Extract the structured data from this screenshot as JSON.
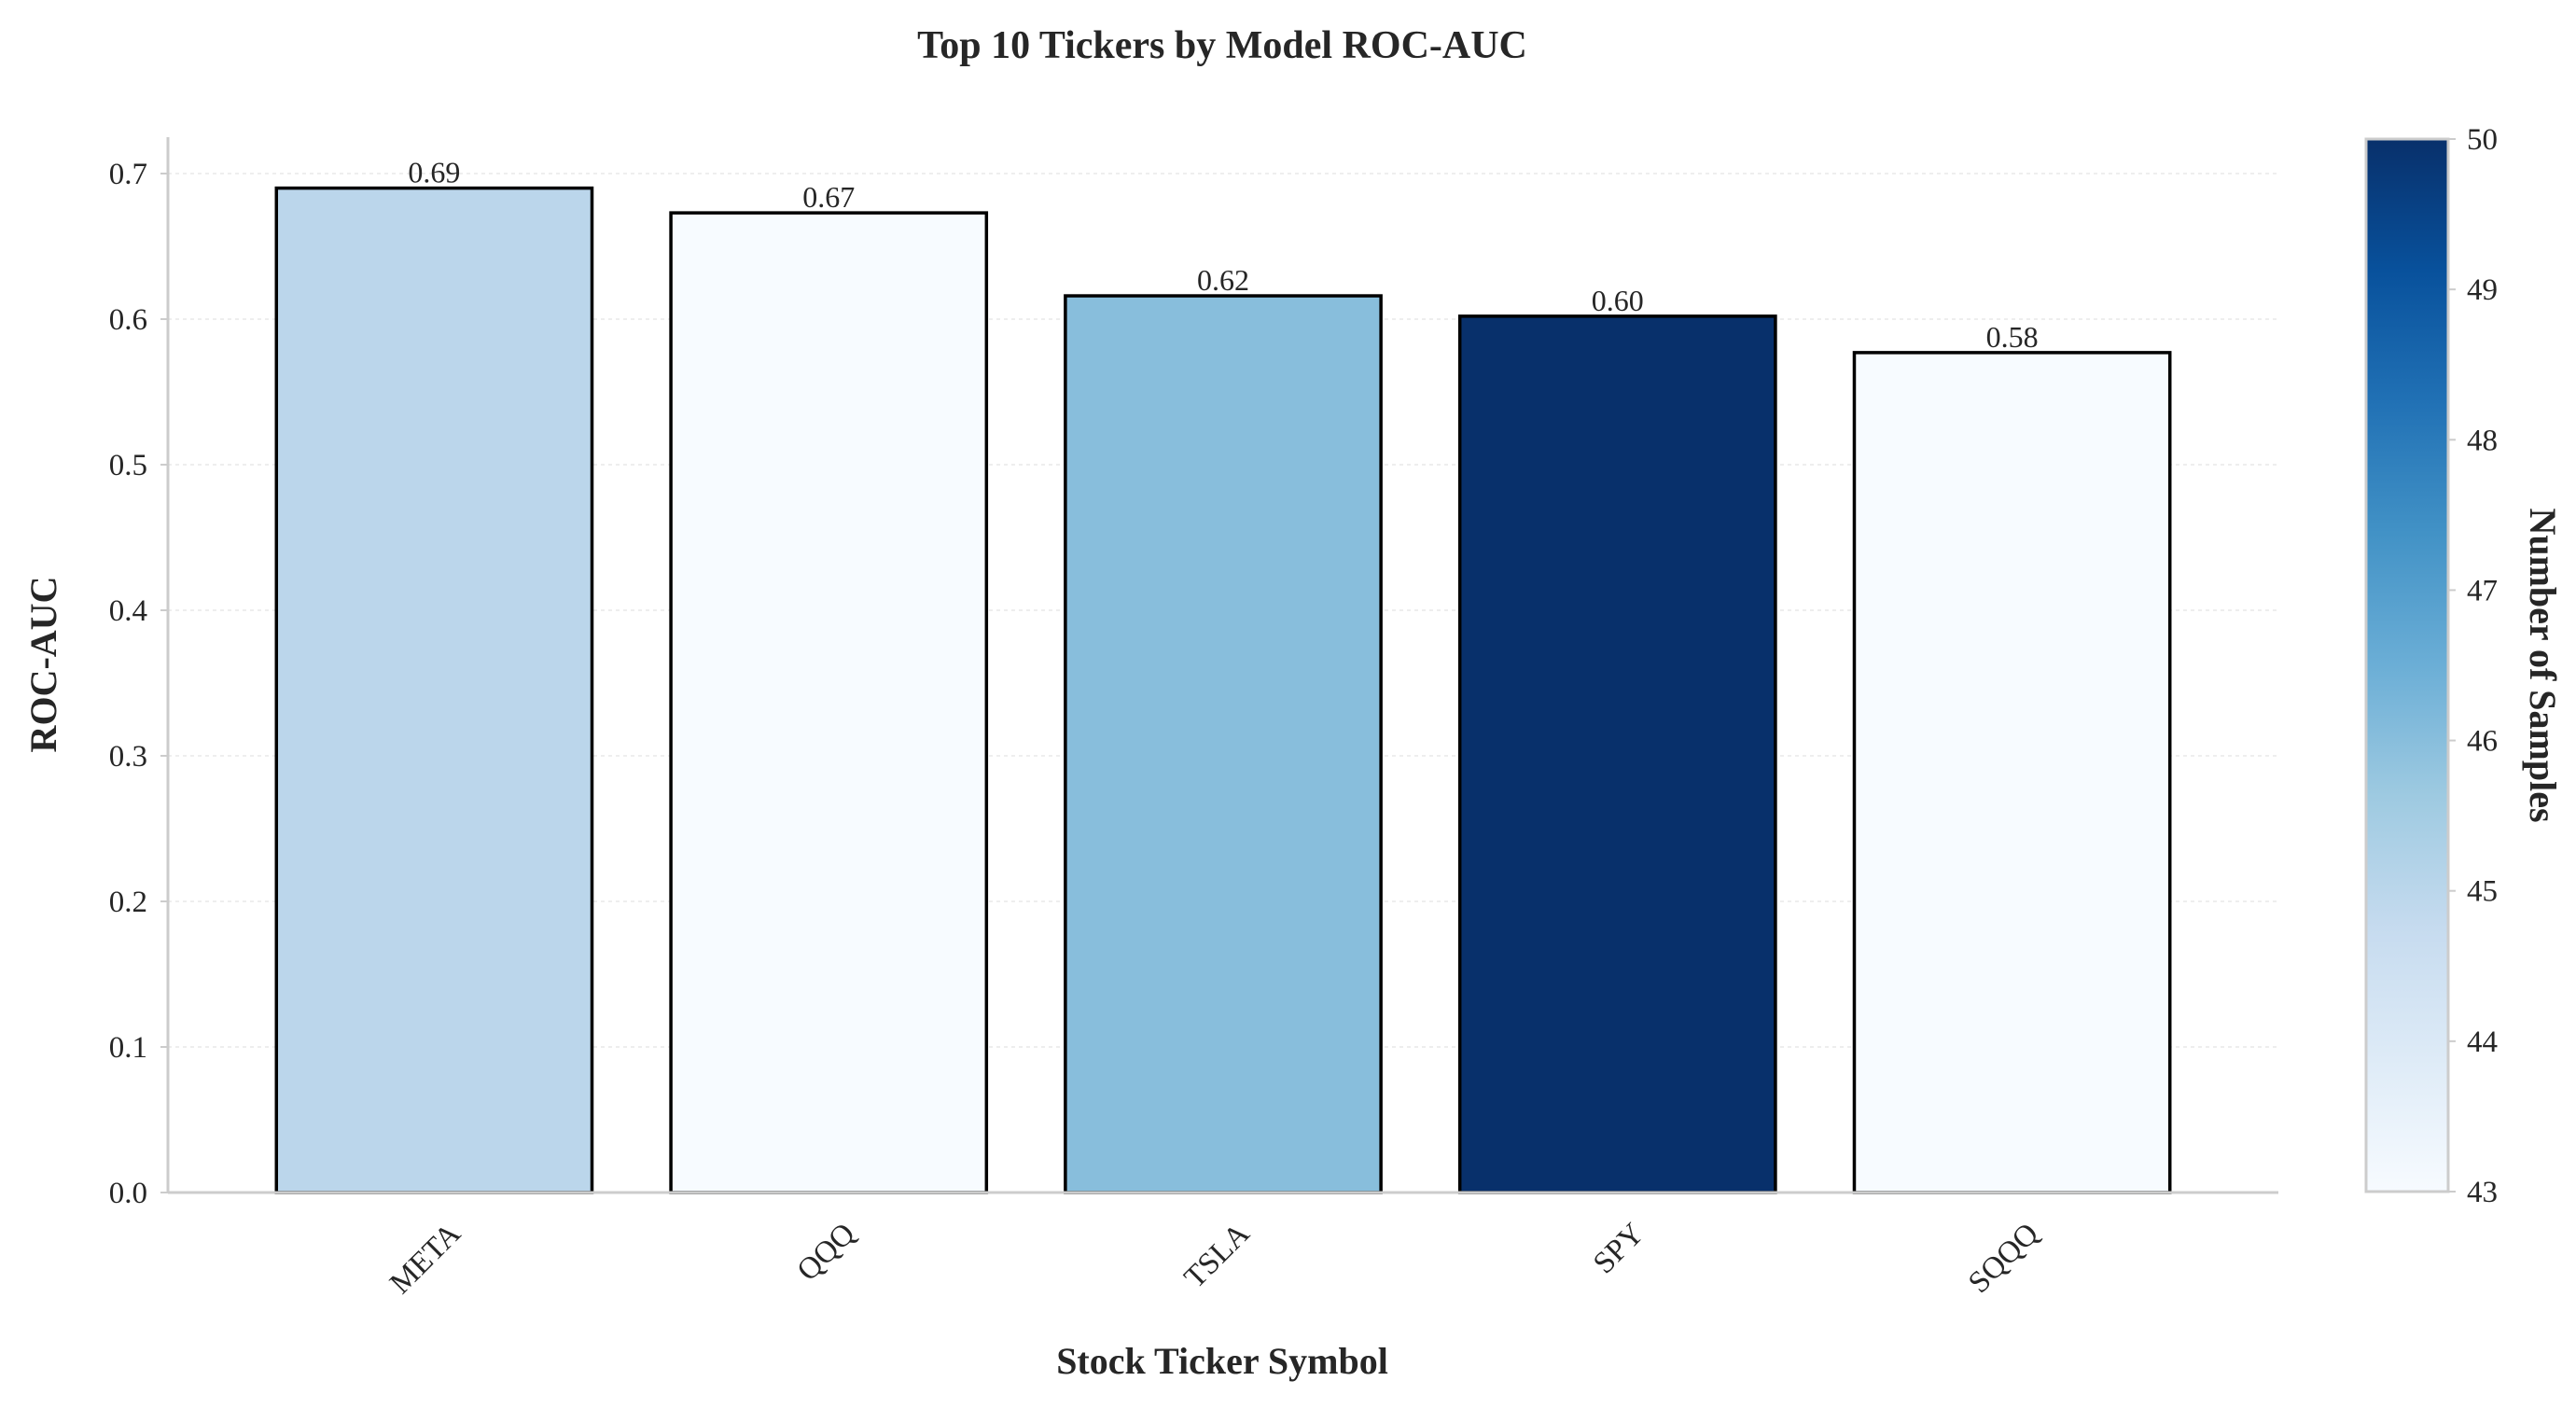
{
  "chart_data": {
    "type": "bar",
    "title": "Top 10 Tickers by Model ROC-AUC",
    "xlabel": "Stock Ticker Symbol",
    "ylabel": "ROC-AUC",
    "categories": [
      "META",
      "QQQ",
      "TSLA",
      "SPY",
      "SQQQ"
    ],
    "values": [
      0.69,
      0.673,
      0.616,
      0.602,
      0.577
    ],
    "value_labels": [
      "0.69",
      "0.67",
      "0.62",
      "0.60",
      "0.58"
    ],
    "samples": [
      45,
      43,
      46,
      50,
      43
    ],
    "ylim": [
      0,
      0.725
    ],
    "yticks": [
      0.0,
      0.1,
      0.2,
      0.3,
      0.4,
      0.5,
      0.6,
      0.7
    ],
    "ytick_labels": [
      "0.0",
      "0.1",
      "0.2",
      "0.3",
      "0.4",
      "0.5",
      "0.6",
      "0.7"
    ],
    "grid": true,
    "colorbar": {
      "label": "Number of Samples",
      "range": [
        43,
        50
      ],
      "ticks": [
        43,
        44,
        45,
        46,
        47,
        48,
        49,
        50
      ],
      "tick_labels": [
        "43",
        "44",
        "45",
        "46",
        "47",
        "48",
        "49",
        "50"
      ],
      "colormap": "Blues",
      "colors": [
        "#f7fbff",
        "#deebf7",
        "#c6dbef",
        "#9ecae1",
        "#6baed6",
        "#4292c6",
        "#2171b5",
        "#08519c",
        "#08306b"
      ]
    },
    "bar_edge_color": "#000000"
  }
}
